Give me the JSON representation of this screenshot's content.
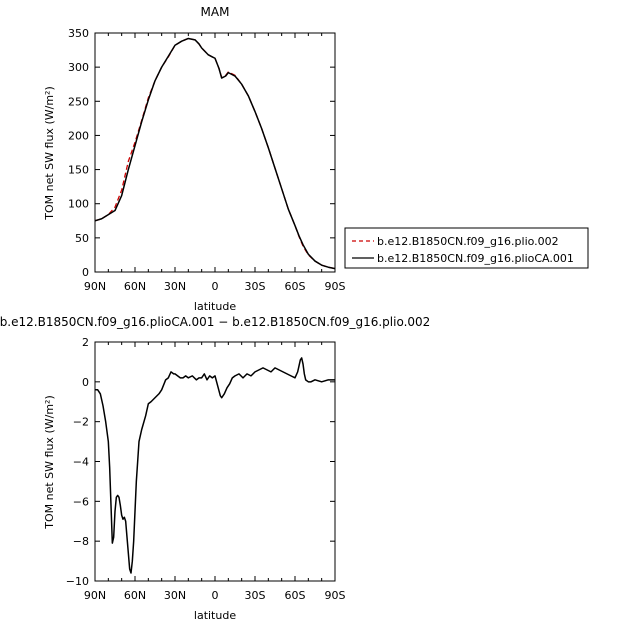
{
  "chart_data": [
    {
      "type": "line",
      "title": "MAM",
      "xlabel": "latitude",
      "ylabel": "TOM net SW flux (W/m²)",
      "xlim": [
        90,
        -90
      ],
      "ylim": [
        0,
        350
      ],
      "xticks": [
        90,
        60,
        30,
        0,
        -30,
        -60,
        -90
      ],
      "xticklabels": [
        "90N",
        "60N",
        "30N",
        "0",
        "30S",
        "60S",
        "90S"
      ],
      "yticks": [
        0,
        50,
        100,
        150,
        200,
        250,
        300,
        350
      ],
      "yticklabels": [
        "0",
        "50",
        "100",
        "150",
        "200",
        "250",
        "300",
        "350"
      ],
      "legend_position": "right",
      "series": [
        {
          "name": "b.e12.B1850CN.f09_g16.plio.002",
          "color": "#cc0000",
          "dash": "dashed",
          "x": [
            90,
            85,
            80,
            75,
            70,
            65,
            60,
            55,
            50,
            45,
            40,
            35,
            30,
            25,
            20,
            15,
            12,
            10,
            5,
            2,
            0,
            -3,
            -5,
            -8,
            -10,
            -15,
            -20,
            -25,
            -30,
            -35,
            -40,
            -45,
            -50,
            -55,
            -60,
            -63,
            -66,
            -70,
            -75,
            -80,
            -85,
            -90
          ],
          "y": [
            75,
            78,
            84,
            95,
            120,
            162,
            190,
            222,
            255,
            280,
            300,
            315,
            332,
            338,
            342,
            340,
            334,
            328,
            318,
            315,
            313,
            298,
            285,
            288,
            293,
            288,
            275,
            258,
            235,
            210,
            182,
            152,
            122,
            92,
            68,
            52,
            38,
            25,
            16,
            10,
            7,
            5
          ]
        },
        {
          "name": "b.e12.B1850CN.f09_g16.plioCA.001",
          "color": "#000000",
          "dash": "solid",
          "x": [
            90,
            85,
            80,
            75,
            70,
            65,
            60,
            55,
            50,
            45,
            40,
            35,
            30,
            25,
            20,
            15,
            12,
            10,
            5,
            2,
            0,
            -3,
            -5,
            -8,
            -10,
            -15,
            -20,
            -25,
            -30,
            -35,
            -40,
            -45,
            -50,
            -55,
            -60,
            -63,
            -66,
            -70,
            -75,
            -80,
            -85,
            -90
          ],
          "y": [
            75,
            78,
            84,
            90,
            112,
            150,
            185,
            220,
            252,
            280,
            300,
            316,
            332,
            338,
            342,
            340,
            334,
            328,
            318,
            315,
            313,
            298,
            284,
            287,
            292,
            287,
            275,
            258,
            235,
            210,
            182,
            152,
            122,
            92,
            68,
            53,
            40,
            26,
            16,
            10,
            7,
            5
          ]
        }
      ]
    },
    {
      "type": "line",
      "title": "b.e12.B1850CN.f09_g16.plioCA.001 − b.e12.B1850CN.f09_g16.plio.002",
      "xlabel": "latitude",
      "ylabel": "TOM net SW flux (W/m²)",
      "xlim": [
        90,
        -90
      ],
      "ylim": [
        -10,
        2
      ],
      "xticks": [
        90,
        60,
        30,
        0,
        -30,
        -60,
        -90
      ],
      "xticklabels": [
        "90N",
        "60N",
        "30N",
        "0",
        "30S",
        "60S",
        "90S"
      ],
      "yticks": [
        -10,
        -8,
        -6,
        -4,
        -2,
        0,
        2
      ],
      "yticklabels": [
        "−10",
        "−8",
        "−6",
        "−4",
        "−2",
        "0",
        "2"
      ],
      "series": [
        {
          "name": "",
          "color": "#000000",
          "dash": "solid",
          "x": [
            90,
            88,
            86,
            84,
            82,
            80,
            79,
            78,
            77,
            76,
            75,
            74,
            73,
            72,
            71,
            70,
            69,
            68,
            67,
            66,
            65,
            64,
            63,
            62,
            61,
            60,
            59,
            58,
            57,
            55,
            52,
            50,
            48,
            45,
            42,
            40,
            37,
            35,
            33,
            31,
            30,
            28,
            26,
            24,
            22,
            20,
            17,
            14,
            12,
            10,
            8,
            6,
            4,
            2,
            0,
            -2,
            -4,
            -5,
            -7,
            -9,
            -11,
            -13,
            -15,
            -18,
            -21,
            -24,
            -27,
            -30,
            -33,
            -36,
            -39,
            -42,
            -45,
            -48,
            -51,
            -54,
            -57,
            -60,
            -62,
            -63,
            -64,
            -65,
            -66,
            -67,
            -68,
            -70,
            -72,
            -75,
            -80,
            -85,
            -90
          ],
          "y": [
            -0.4,
            -0.4,
            -0.6,
            -1.2,
            -2.0,
            -3.0,
            -4.3,
            -6.2,
            -8.1,
            -7.8,
            -6.5,
            -5.8,
            -5.7,
            -5.8,
            -6.2,
            -6.7,
            -6.9,
            -6.8,
            -7.0,
            -7.8,
            -8.6,
            -9.4,
            -9.6,
            -9.0,
            -8.0,
            -6.5,
            -5.0,
            -4.0,
            -3.0,
            -2.4,
            -1.7,
            -1.1,
            -1.0,
            -0.8,
            -0.6,
            -0.4,
            0.1,
            0.2,
            0.5,
            0.4,
            0.4,
            0.3,
            0.2,
            0.2,
            0.3,
            0.2,
            0.3,
            0.1,
            0.2,
            0.2,
            0.4,
            0.1,
            0.3,
            0.2,
            0.3,
            -0.2,
            -0.7,
            -0.8,
            -0.6,
            -0.3,
            -0.1,
            0.2,
            0.3,
            0.4,
            0.2,
            0.4,
            0.3,
            0.5,
            0.6,
            0.7,
            0.6,
            0.5,
            0.7,
            0.6,
            0.5,
            0.4,
            0.3,
            0.2,
            0.5,
            0.8,
            1.1,
            1.2,
            0.9,
            0.4,
            0.1,
            0.0,
            0.0,
            0.1,
            0.0,
            0.1,
            0.1
          ]
        }
      ]
    }
  ]
}
